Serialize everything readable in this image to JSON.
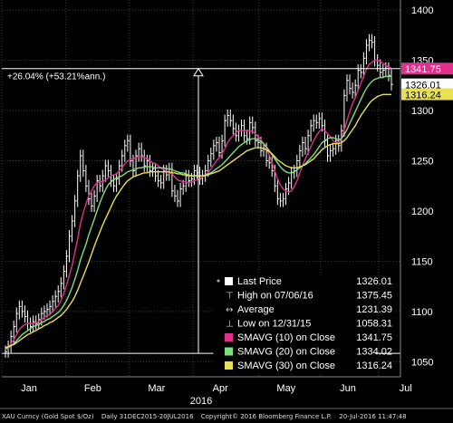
{
  "chart_data": {
    "type": "line",
    "security": "XAU Curncy (Gold Spot  $/Oz)",
    "period": "Daily 31DEC2015-20JUL2016",
    "copyright": "Copyright© 2016 Bloomberg Finance L.P.",
    "timestamp": "20-Jul-2016 11:47:48",
    "x_labels": [
      "Jan",
      "Feb",
      "Mar",
      "Apr",
      "May",
      "Jun",
      "Jul"
    ],
    "x_year_label": "2016",
    "y_ticks": [
      1050,
      1100,
      1150,
      1200,
      1250,
      1300,
      1350,
      1400
    ],
    "ylim": [
      1035,
      1410
    ],
    "measure_label": "+26.04% (+53.21%ann.)",
    "measure_range": [
      1058.31,
      1341.75
    ],
    "last_values": {
      "sma10": "1341.75",
      "last": "1326.01",
      "sma30": "1316.24"
    },
    "colors": {
      "price": "#ffffff",
      "sma10": "#e0308c",
      "sma20": "#7ee07e",
      "sma30": "#e8e050",
      "background": "#000000",
      "grid": "#3a3a3a"
    },
    "legend": [
      {
        "label": "Last Price",
        "value": "1326.01",
        "marker": "square-white"
      },
      {
        "label": "High on 07/06/16",
        "value": "1375.45",
        "marker": "high-icon"
      },
      {
        "label": "Average",
        "value": "1231.39",
        "marker": "average-icon"
      },
      {
        "label": "Low on 12/31/15",
        "value": "1058.31",
        "marker": "low-icon"
      },
      {
        "label": "SMAVG (10)  on Close",
        "value": "1341.75",
        "marker": "square-magenta"
      },
      {
        "label": "SMAVG (20)  on Close",
        "value": "1334.02",
        "marker": "square-green"
      },
      {
        "label": "SMAVG (30)  on Close",
        "value": "1316.24",
        "marker": "square-yellow"
      }
    ],
    "series": [
      {
        "name": "Last Price",
        "values": [
          1060,
          1065,
          1075,
          1085,
          1098,
          1105,
          1100,
          1095,
          1088,
          1085,
          1090,
          1088,
          1092,
          1098,
          1100,
          1102,
          1105,
          1110,
          1115,
          1120,
          1128,
          1140,
          1155,
          1175,
          1190,
          1210,
          1235,
          1255,
          1240,
          1225,
          1212,
          1205,
          1215,
          1230,
          1225,
          1235,
          1245,
          1240,
          1230,
          1225,
          1232,
          1245,
          1255,
          1265,
          1270,
          1250,
          1240,
          1255,
          1262,
          1255,
          1245,
          1250,
          1240,
          1242,
          1235,
          1230,
          1228,
          1240,
          1236,
          1242,
          1220,
          1215,
          1210,
          1222,
          1225,
          1235,
          1230,
          1232,
          1240,
          1238,
          1232,
          1235,
          1240,
          1250,
          1257,
          1265,
          1268,
          1258,
          1270,
          1290,
          1295,
          1290,
          1282,
          1275,
          1280,
          1285,
          1275,
          1272,
          1288,
          1283,
          1270,
          1268,
          1260,
          1262,
          1250,
          1248,
          1240,
          1225,
          1212,
          1210,
          1212,
          1222,
          1228,
          1238,
          1240,
          1250,
          1260,
          1268,
          1262,
          1275,
          1285,
          1290,
          1288,
          1292,
          1285,
          1270,
          1255,
          1260,
          1262,
          1270,
          1265,
          1280,
          1315,
          1330,
          1322,
          1318,
          1325,
          1340,
          1338,
          1352,
          1365,
          1370,
          1368,
          1350,
          1345,
          1338,
          1340,
          1342,
          1335,
          1326
        ]
      },
      {
        "name": "SMAVG (10)  on Close",
        "values": [
          1062,
          1064,
          1068,
          1072,
          1077,
          1082,
          1085,
          1087,
          1088,
          1088,
          1088,
          1089,
          1090,
          1092,
          1094,
          1096,
          1097,
          1100,
          1103,
          1106,
          1111,
          1118,
          1126,
          1136,
          1146,
          1159,
          1172,
          1187,
          1198,
          1207,
          1215,
          1220,
          1225,
          1228,
          1229,
          1229,
          1231,
          1233,
          1235,
          1236,
          1237,
          1240,
          1243,
          1247,
          1250,
          1251,
          1252,
          1253,
          1254,
          1254,
          1253,
          1252,
          1250,
          1248,
          1247,
          1245,
          1243,
          1241,
          1240,
          1238,
          1237,
          1234,
          1231,
          1230,
          1229,
          1229,
          1228,
          1229,
          1230,
          1231,
          1232,
          1234,
          1236,
          1238,
          1242,
          1246,
          1250,
          1253,
          1257,
          1262,
          1268,
          1272,
          1275,
          1278,
          1280,
          1280,
          1280,
          1280,
          1280,
          1279,
          1277,
          1274,
          1271,
          1267,
          1262,
          1256,
          1248,
          1240,
          1232,
          1226,
          1222,
          1220,
          1219,
          1220,
          1224,
          1230,
          1238,
          1245,
          1252,
          1258,
          1264,
          1270,
          1275,
          1279,
          1282,
          1280,
          1277,
          1274,
          1270,
          1268,
          1268,
          1272,
          1280,
          1290,
          1299,
          1307,
          1313,
          1320,
          1327,
          1334,
          1341,
          1346,
          1348,
          1350,
          1350,
          1349,
          1347,
          1345,
          1343,
          1342
        ]
      },
      {
        "name": "SMAVG (20)  on Close",
        "values": [
          1063,
          1064,
          1066,
          1068,
          1071,
          1074,
          1077,
          1079,
          1081,
          1083,
          1085,
          1086,
          1087,
          1089,
          1090,
          1092,
          1093,
          1095,
          1097,
          1099,
          1102,
          1106,
          1111,
          1117,
          1124,
          1132,
          1141,
          1151,
          1159,
          1167,
          1176,
          1184,
          1192,
          1200,
          1208,
          1215,
          1221,
          1226,
          1229,
          1231,
          1233,
          1234,
          1235,
          1237,
          1239,
          1240,
          1241,
          1242,
          1243,
          1243,
          1244,
          1244,
          1244,
          1244,
          1243,
          1243,
          1243,
          1243,
          1242,
          1242,
          1241,
          1240,
          1239,
          1238,
          1238,
          1237,
          1236,
          1235,
          1235,
          1235,
          1235,
          1235,
          1236,
          1237,
          1238,
          1240,
          1242,
          1244,
          1246,
          1249,
          1252,
          1255,
          1258,
          1261,
          1264,
          1266,
          1268,
          1270,
          1271,
          1272,
          1272,
          1271,
          1269,
          1267,
          1264,
          1260,
          1256,
          1252,
          1248,
          1244,
          1241,
          1239,
          1238,
          1238,
          1239,
          1241,
          1243,
          1245,
          1247,
          1250,
          1253,
          1256,
          1260,
          1264,
          1268,
          1270,
          1272,
          1273,
          1273,
          1272,
          1271,
          1272,
          1276,
          1281,
          1287,
          1293,
          1299,
          1305,
          1311,
          1317,
          1322,
          1326,
          1329,
          1331,
          1332,
          1333,
          1333,
          1334,
          1334,
          1334
        ]
      },
      {
        "name": "SMAVG (30)  on Close",
        "values": [
          1064,
          1065,
          1066,
          1067,
          1069,
          1071,
          1073,
          1075,
          1077,
          1078,
          1080,
          1081,
          1083,
          1084,
          1086,
          1087,
          1089,
          1090,
          1092,
          1094,
          1096,
          1099,
          1102,
          1106,
          1110,
          1115,
          1121,
          1128,
          1135,
          1142,
          1149,
          1157,
          1165,
          1172,
          1179,
          1186,
          1192,
          1198,
          1204,
          1210,
          1215,
          1219,
          1223,
          1227,
          1230,
          1232,
          1234,
          1235,
          1236,
          1237,
          1238,
          1238,
          1239,
          1239,
          1239,
          1239,
          1239,
          1239,
          1239,
          1239,
          1238,
          1238,
          1237,
          1237,
          1236,
          1236,
          1235,
          1235,
          1235,
          1235,
          1235,
          1235,
          1235,
          1236,
          1237,
          1238,
          1239,
          1240,
          1242,
          1244,
          1246,
          1248,
          1250,
          1252,
          1254,
          1256,
          1258,
          1260,
          1261,
          1262,
          1263,
          1263,
          1263,
          1262,
          1261,
          1259,
          1257,
          1254,
          1251,
          1249,
          1247,
          1245,
          1244,
          1243,
          1243,
          1243,
          1244,
          1245,
          1246,
          1248,
          1250,
          1252,
          1255,
          1258,
          1261,
          1263,
          1265,
          1266,
          1267,
          1267,
          1267,
          1268,
          1270,
          1273,
          1277,
          1281,
          1285,
          1290,
          1295,
          1299,
          1303,
          1307,
          1310,
          1312,
          1314,
          1315,
          1316,
          1316,
          1316,
          1316
        ]
      }
    ]
  }
}
